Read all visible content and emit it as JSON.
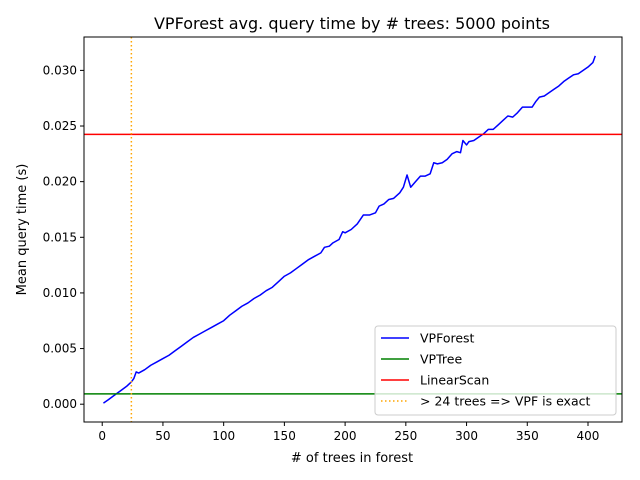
{
  "chart_data": {
    "type": "line",
    "title": "VPForest avg. query time by # trees: 5000 points",
    "xlabel": "# of trees in forest",
    "ylabel": "Mean query time (s)",
    "xlim": [
      -15,
      428
    ],
    "ylim": [
      -0.0016,
      0.033
    ],
    "xticks": [
      0,
      50,
      100,
      150,
      200,
      250,
      300,
      350,
      400
    ],
    "xtick_labels": [
      "0",
      "50",
      "100",
      "150",
      "200",
      "250",
      "300",
      "350",
      "400"
    ],
    "yticks": [
      0.0,
      0.005,
      0.01,
      0.015,
      0.02,
      0.025,
      0.03
    ],
    "ytick_labels": [
      "0.000",
      "0.005",
      "0.010",
      "0.015",
      "0.020",
      "0.025",
      "0.030"
    ],
    "grid": false,
    "legend_position": "lower-right",
    "series": [
      {
        "name": "VPForest",
        "color": "#0000ff",
        "kind": "line",
        "x": [
          1,
          5,
          10,
          15,
          20,
          24,
          26,
          28,
          30,
          35,
          40,
          45,
          50,
          55,
          60,
          65,
          70,
          75,
          80,
          85,
          90,
          95,
          100,
          105,
          110,
          115,
          120,
          125,
          130,
          135,
          140,
          145,
          150,
          155,
          160,
          165,
          170,
          175,
          180,
          183,
          187,
          190,
          195,
          198,
          200,
          205,
          210,
          215,
          220,
          225,
          228,
          232,
          236,
          240,
          245,
          248,
          251,
          254,
          258,
          262,
          266,
          270,
          273,
          276,
          280,
          284,
          288,
          292,
          295,
          297,
          300,
          302,
          306,
          310,
          314,
          318,
          322,
          326,
          330,
          334,
          338,
          342,
          346,
          350,
          354,
          357,
          360,
          364,
          368,
          372,
          376,
          380,
          384,
          388,
          392,
          396,
          400,
          404,
          406
        ],
        "y": [
          0.0001,
          0.0004,
          0.0008,
          0.0012,
          0.0016,
          0.002,
          0.0023,
          0.0029,
          0.0028,
          0.0031,
          0.0035,
          0.0038,
          0.0041,
          0.0044,
          0.0048,
          0.0052,
          0.0056,
          0.006,
          0.0063,
          0.0066,
          0.0069,
          0.0072,
          0.0075,
          0.008,
          0.0084,
          0.0088,
          0.0091,
          0.0095,
          0.0098,
          0.0102,
          0.0105,
          0.011,
          0.0115,
          0.0118,
          0.0122,
          0.0126,
          0.013,
          0.0133,
          0.0136,
          0.0141,
          0.0142,
          0.0145,
          0.0148,
          0.0155,
          0.0154,
          0.0157,
          0.0162,
          0.017,
          0.017,
          0.0172,
          0.0178,
          0.018,
          0.0184,
          0.0185,
          0.019,
          0.0195,
          0.0206,
          0.0195,
          0.02,
          0.0205,
          0.0205,
          0.0207,
          0.0217,
          0.0216,
          0.0217,
          0.022,
          0.0225,
          0.0227,
          0.0226,
          0.0237,
          0.0233,
          0.0236,
          0.0237,
          0.024,
          0.0243,
          0.0247,
          0.0247,
          0.0251,
          0.0255,
          0.0259,
          0.0258,
          0.0262,
          0.0267,
          0.0267,
          0.0267,
          0.0272,
          0.0276,
          0.0277,
          0.028,
          0.0283,
          0.0286,
          0.029,
          0.0293,
          0.0296,
          0.0297,
          0.03,
          0.0303,
          0.0307,
          0.0313
        ]
      },
      {
        "name": "VPTree",
        "color": "#008000",
        "kind": "hline",
        "y": 0.00093
      },
      {
        "name": "LinearScan",
        "color": "#ff0000",
        "kind": "hline",
        "y": 0.02425
      },
      {
        "name": "> 24 trees => VPF is exact",
        "color": "#ffa500",
        "kind": "vline",
        "x": 24
      }
    ]
  }
}
